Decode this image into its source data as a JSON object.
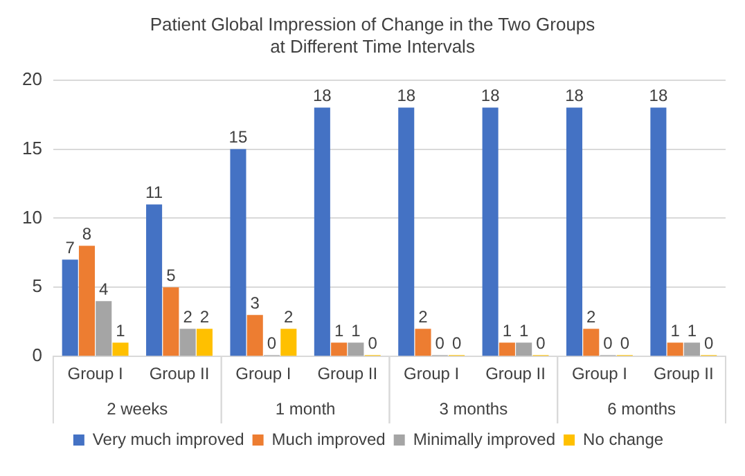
{
  "chart_data": {
    "type": "bar",
    "title": "Patient Global Impression of Change in the Two Groups at Different Time Intervals",
    "categories": [
      "Group I",
      "Group II",
      "Group I",
      "Group II",
      "Group I",
      "Group II",
      "Group I",
      "Group II"
    ],
    "series": [
      {
        "name": "Very much improved",
        "color": "#4472c4",
        "values": [
          7,
          11,
          15,
          18,
          18,
          18,
          18,
          18
        ]
      },
      {
        "name": "Much improved",
        "color": "#ed7d31",
        "values": [
          8,
          5,
          3,
          1,
          2,
          1,
          2,
          1
        ]
      },
      {
        "name": "Minimally improved",
        "color": "#a5a5a5",
        "values": [
          4,
          2,
          0,
          1,
          0,
          1,
          0,
          1
        ]
      },
      {
        "name": "No change",
        "color": "#ffc000",
        "values": [
          1,
          2,
          2,
          0,
          0,
          0,
          0,
          0
        ]
      }
    ],
    "annotations": [
      "2 weeks",
      "1 month",
      "3 months",
      "6 months"
    ],
    "ylim": [
      0,
      20
    ],
    "yticks": [
      0,
      5,
      10,
      15,
      20
    ],
    "grid": "y",
    "legend": "bottom",
    "data_labels": true
  }
}
